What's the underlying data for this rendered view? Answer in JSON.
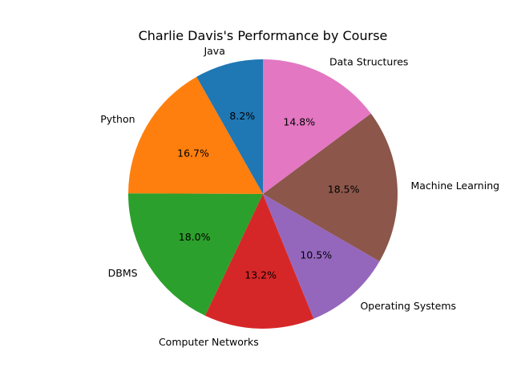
{
  "chart_data": {
    "type": "pie",
    "title": "Charlie Davis's Performance by Course",
    "start_angle": 90,
    "direction": "counterclockwise",
    "legend": "none",
    "slices": [
      {
        "label": "Java",
        "percent": 8.2,
        "percent_label": "8.2%",
        "color": "#1f77b4"
      },
      {
        "label": "Python",
        "percent": 16.7,
        "percent_label": "16.7%",
        "color": "#ff7f0e"
      },
      {
        "label": "DBMS",
        "percent": 18.0,
        "percent_label": "18.0%",
        "color": "#2ca02c"
      },
      {
        "label": "Computer Networks",
        "percent": 13.2,
        "percent_label": "13.2%",
        "color": "#d62728"
      },
      {
        "label": "Operating Systems",
        "percent": 10.5,
        "percent_label": "10.5%",
        "color": "#9467bd"
      },
      {
        "label": "Machine Learning",
        "percent": 18.5,
        "percent_label": "18.5%",
        "color": "#8c564b"
      },
      {
        "label": "Data Structures",
        "percent": 14.8,
        "percent_label": "14.8%",
        "color": "#e377c2"
      }
    ]
  }
}
